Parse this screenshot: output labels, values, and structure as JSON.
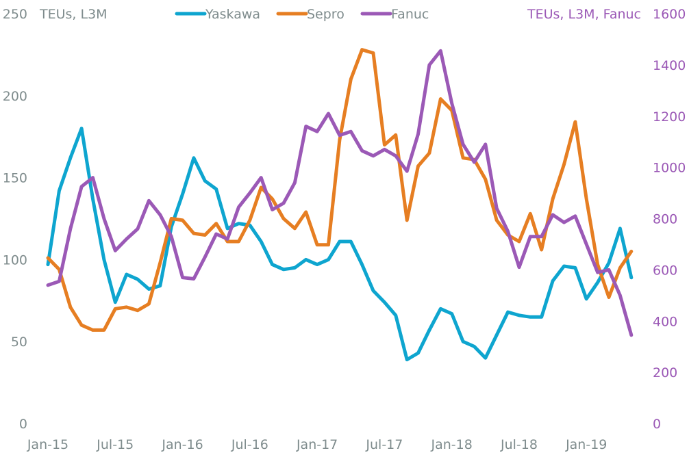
{
  "chart_data": {
    "type": "line",
    "title": "",
    "left_axis": {
      "label": "TEUs, L3M",
      "range": [
        0,
        250
      ],
      "ticks": [
        "0",
        "50",
        "100",
        "150",
        "200",
        "250"
      ],
      "tick_values": [
        0,
        50,
        100,
        150,
        200,
        250
      ]
    },
    "right_axis": {
      "label": "TEUs, L3M, Fanuc",
      "range": [
        0,
        1600
      ],
      "ticks": [
        "0",
        "200",
        "400",
        "600",
        "800",
        "1000",
        "1200",
        "1400",
        "1600"
      ],
      "tick_values": [
        0,
        200,
        400,
        600,
        800,
        1000,
        1200,
        1400,
        1600
      ],
      "color": "#9b59b6"
    },
    "x_ticks": [
      "Jan-15",
      "Jul-15",
      "Jan-16",
      "Jul-16",
      "Jan-17",
      "Jul-17",
      "Jan-18",
      "Jul-18",
      "Jan-19"
    ],
    "x_tick_month_index": [
      0,
      6,
      12,
      18,
      24,
      30,
      36,
      42,
      48
    ],
    "x_start": "Jan-15",
    "x_frequency": "monthly",
    "grid": false,
    "legend_position": "top-center",
    "series": [
      {
        "name": "Yaskawa",
        "axis": "left",
        "color": "#0ea5cf",
        "values": [
          97,
          142,
          162,
          180,
          137,
          100,
          74,
          91,
          88,
          82,
          84,
          120,
          140,
          162,
          148,
          143,
          119,
          122,
          121,
          111,
          97,
          94,
          95,
          100,
          97,
          100,
          111,
          111,
          97,
          81,
          74,
          66,
          39,
          43,
          57,
          70,
          67,
          50,
          47,
          40,
          54,
          68,
          66,
          65,
          65,
          87,
          96,
          95,
          76,
          86,
          98,
          119,
          89
        ]
      },
      {
        "name": "Sepro",
        "axis": "left",
        "color": "#e67e22",
        "values": [
          101,
          94,
          71,
          60,
          57,
          57,
          70,
          71,
          69,
          73,
          98,
          125,
          124,
          116,
          115,
          122,
          111,
          111,
          124,
          144,
          137,
          125,
          119,
          129,
          109,
          109,
          173,
          210,
          228,
          226,
          170,
          176,
          124,
          157,
          165,
          198,
          191,
          162,
          161,
          149,
          124,
          115,
          111,
          128,
          106,
          137,
          158,
          184,
          137,
          97,
          77,
          95,
          105
        ]
      },
      {
        "name": "Fanuc",
        "axis": "right",
        "color": "#9b59b6",
        "values": [
          540,
          555,
          760,
          925,
          960,
          800,
          675,
          720,
          760,
          870,
          815,
          730,
          570,
          565,
          650,
          740,
          720,
          845,
          900,
          960,
          835,
          860,
          940,
          1160,
          1140,
          1210,
          1125,
          1140,
          1065,
          1045,
          1070,
          1045,
          985,
          1130,
          1400,
          1455,
          1250,
          1090,
          1020,
          1090,
          840,
          750,
          610,
          730,
          730,
          815,
          785,
          810,
          700,
          590,
          600,
          500,
          345
        ]
      }
    ]
  },
  "colors": {
    "text": "#7f8c8d",
    "right_axis_text": "#9b59b6"
  }
}
